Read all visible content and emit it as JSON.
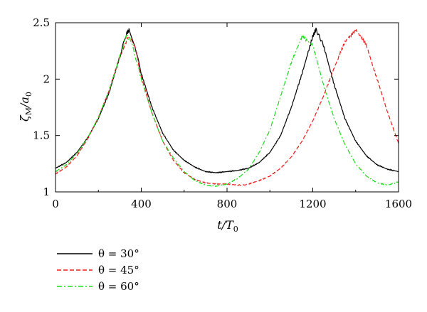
{
  "chart_data": {
    "type": "line",
    "xlabel": "t/T0",
    "ylabel": "ζM/a0",
    "xlim": [
      0,
      1600
    ],
    "ylim": [
      1,
      2.5
    ],
    "xticks": [
      0,
      400,
      800,
      1200,
      1600
    ],
    "yticks": [
      1,
      1.5,
      2,
      2.5
    ],
    "grid": false,
    "legend": "bottom-left",
    "series": [
      {
        "name": "θ = 30°",
        "color": "#000000",
        "style": "solid",
        "x": [
          0,
          50,
          100,
          150,
          200,
          250,
          300,
          330,
          345,
          370,
          400,
          450,
          500,
          550,
          600,
          650,
          700,
          750,
          800,
          850,
          900,
          950,
          1000,
          1050,
          1100,
          1150,
          1200,
          1215,
          1250,
          1300,
          1350,
          1400,
          1450,
          1500,
          1550,
          1600
        ],
        "y": [
          1.21,
          1.26,
          1.35,
          1.48,
          1.65,
          1.88,
          2.2,
          2.4,
          2.44,
          2.3,
          2.05,
          1.75,
          1.52,
          1.37,
          1.28,
          1.22,
          1.18,
          1.17,
          1.18,
          1.19,
          1.21,
          1.26,
          1.35,
          1.5,
          1.75,
          2.05,
          2.38,
          2.44,
          2.3,
          1.95,
          1.65,
          1.45,
          1.32,
          1.24,
          1.2,
          1.18
        ]
      },
      {
        "name": "θ = 45°",
        "color": "#ee1c1c",
        "style": "dashed",
        "x": [
          0,
          50,
          100,
          150,
          200,
          250,
          300,
          340,
          370,
          400,
          450,
          500,
          550,
          600,
          650,
          700,
          750,
          800,
          850,
          870,
          900,
          950,
          1000,
          1050,
          1100,
          1150,
          1200,
          1250,
          1300,
          1350,
          1400,
          1450,
          1500,
          1550,
          1600
        ],
        "y": [
          1.16,
          1.22,
          1.32,
          1.47,
          1.66,
          1.9,
          2.2,
          2.38,
          2.3,
          2.02,
          1.7,
          1.45,
          1.28,
          1.17,
          1.11,
          1.08,
          1.07,
          1.07,
          1.06,
          1.06,
          1.07,
          1.1,
          1.14,
          1.21,
          1.31,
          1.45,
          1.63,
          1.85,
          2.1,
          2.33,
          2.44,
          2.3,
          2.0,
          1.7,
          1.43
        ]
      },
      {
        "name": "θ = 60°",
        "color": "#1adf1a",
        "style": "dash-dot",
        "x": [
          0,
          50,
          100,
          150,
          200,
          250,
          300,
          330,
          350,
          380,
          400,
          450,
          500,
          550,
          600,
          650,
          700,
          750,
          800,
          850,
          900,
          950,
          1000,
          1050,
          1100,
          1150,
          1200,
          1250,
          1300,
          1350,
          1400,
          1450,
          1500,
          1550,
          1600
        ],
        "y": [
          1.18,
          1.24,
          1.34,
          1.48,
          1.66,
          1.9,
          2.2,
          2.38,
          2.35,
          2.15,
          2.0,
          1.7,
          1.45,
          1.3,
          1.18,
          1.1,
          1.06,
          1.05,
          1.07,
          1.12,
          1.2,
          1.35,
          1.55,
          1.85,
          2.15,
          2.38,
          2.3,
          1.95,
          1.65,
          1.42,
          1.25,
          1.14,
          1.08,
          1.06,
          1.09
        ]
      }
    ]
  }
}
